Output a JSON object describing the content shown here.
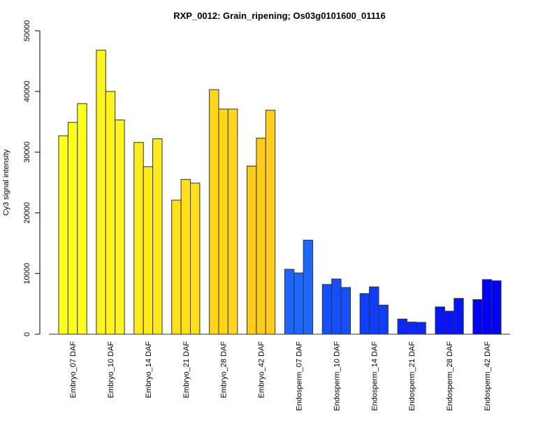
{
  "chart_data": {
    "type": "bar",
    "title": "RXP_0012: Grain_ripening; Os03g0101600_01116",
    "xlabel": "",
    "ylabel": "Cy3 signal intensity",
    "ylim": [
      0,
      50000
    ],
    "yticks": [
      0,
      10000,
      20000,
      30000,
      40000,
      50000
    ],
    "grid": false,
    "categories": [
      "Embryo_07 DAF",
      "Embryo_10 DAF",
      "Embryo_14 DAF",
      "Embryo_21 DAF",
      "Embryo_28 DAF",
      "Embryo_42 DAF",
      "Endosperm_07 DAF",
      "Endosperm_10 DAF",
      "Endosperm_14 DAF",
      "Endosperm_21 DAF",
      "Endosperm_28 DAF",
      "Endosperm_42 DAF"
    ],
    "replicates": [
      [
        32700,
        34900,
        38000
      ],
      [
        46800,
        40000,
        35300
      ],
      [
        31600,
        27600,
        32200
      ],
      [
        22100,
        25500,
        24900
      ],
      [
        40300,
        37100,
        37100
      ],
      [
        27700,
        32300,
        36900
      ],
      [
        10700,
        10100,
        15500
      ],
      [
        8200,
        9100,
        7700
      ],
      [
        6700,
        7800,
        4800
      ],
      [
        2500,
        2000,
        1950
      ],
      [
        4500,
        3800,
        5900
      ],
      [
        5700,
        9000,
        8800
      ]
    ],
    "colors": [
      "#FFFF1A",
      "#FFF51A",
      "#FFEB1A",
      "#FFE01A",
      "#FFD61A",
      "#FFCC1A",
      "#1A66FF",
      "#1450FF",
      "#0F3DFF",
      "#0A28FF",
      "#0514FF",
      "#0000FF"
    ]
  }
}
